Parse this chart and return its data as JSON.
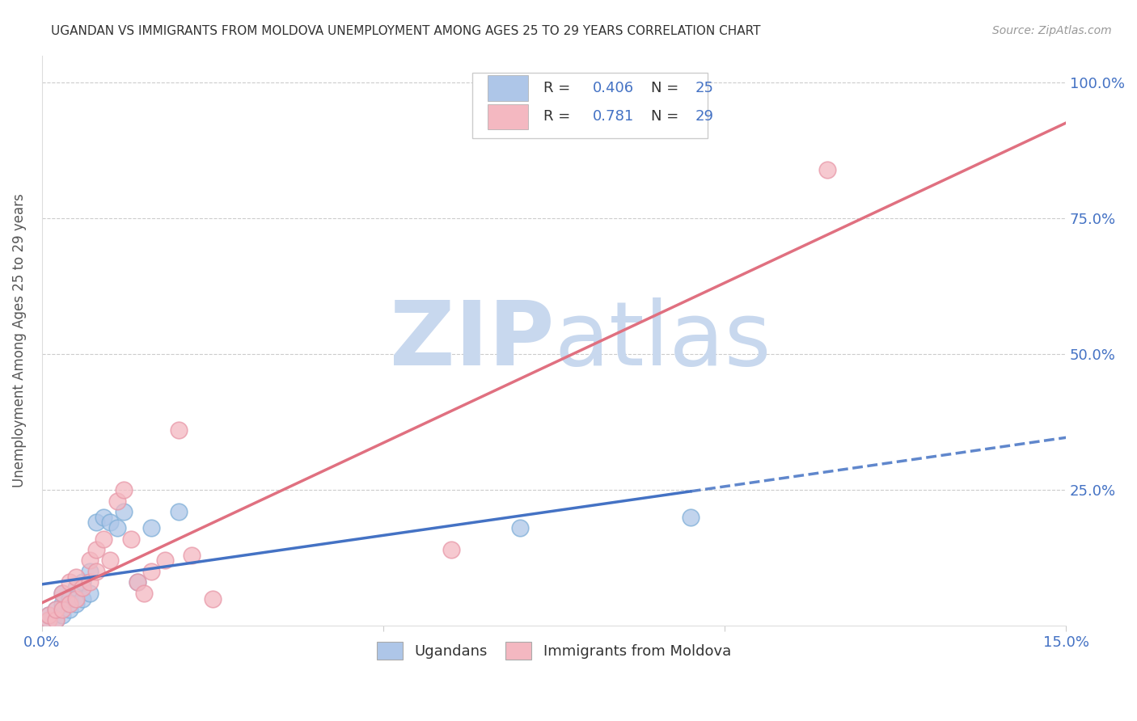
{
  "title": "UGANDAN VS IMMIGRANTS FROM MOLDOVA UNEMPLOYMENT AMONG AGES 25 TO 29 YEARS CORRELATION CHART",
  "source": "Source: ZipAtlas.com",
  "xlabel_color": "#4472c4",
  "ylabel": "Unemployment Among Ages 25 to 29 years",
  "x_min": 0.0,
  "x_max": 0.15,
  "y_min": 0.0,
  "y_max": 1.05,
  "x_ticks": [
    0.0,
    0.05,
    0.1,
    0.15
  ],
  "x_tick_labels": [
    "0.0%",
    "",
    "",
    "15.0%"
  ],
  "y_ticks": [
    0.0,
    0.25,
    0.5,
    0.75,
    1.0
  ],
  "y_tick_labels": [
    "",
    "25.0%",
    "50.0%",
    "75.0%",
    "100.0%"
  ],
  "background_color": "#ffffff",
  "grid_color": "#cccccc",
  "watermark_zip": "ZIP",
  "watermark_atlas": "atlas",
  "watermark_color_zip": "#c8d8ee",
  "watermark_color_atlas": "#c8d8ee",
  "legend_color1": "#aec6e8",
  "legend_color2": "#f4b8c1",
  "scatter_color1": "#aec6e8",
  "scatter_color2": "#f4b8c1",
  "line_color1": "#4472c4",
  "line_color2": "#e07080",
  "label1": "Ugandans",
  "label2": "Immigrants from Moldova",
  "ugandan_x": [
    0.001,
    0.001,
    0.002,
    0.002,
    0.003,
    0.003,
    0.003,
    0.004,
    0.004,
    0.005,
    0.005,
    0.006,
    0.006,
    0.007,
    0.007,
    0.008,
    0.009,
    0.01,
    0.011,
    0.012,
    0.014,
    0.016,
    0.02,
    0.07,
    0.095
  ],
  "ugandan_y": [
    0.01,
    0.02,
    0.01,
    0.03,
    0.02,
    0.04,
    0.06,
    0.03,
    0.05,
    0.04,
    0.07,
    0.05,
    0.08,
    0.06,
    0.1,
    0.19,
    0.2,
    0.19,
    0.18,
    0.21,
    0.08,
    0.18,
    0.21,
    0.18,
    0.2
  ],
  "moldova_x": [
    0.001,
    0.001,
    0.002,
    0.002,
    0.003,
    0.003,
    0.004,
    0.004,
    0.005,
    0.005,
    0.006,
    0.007,
    0.007,
    0.008,
    0.008,
    0.009,
    0.01,
    0.011,
    0.012,
    0.013,
    0.014,
    0.015,
    0.016,
    0.018,
    0.02,
    0.022,
    0.025,
    0.06,
    0.115
  ],
  "moldova_y": [
    0.01,
    0.02,
    0.01,
    0.03,
    0.03,
    0.06,
    0.04,
    0.08,
    0.05,
    0.09,
    0.07,
    0.08,
    0.12,
    0.1,
    0.14,
    0.16,
    0.12,
    0.23,
    0.25,
    0.16,
    0.08,
    0.06,
    0.1,
    0.12,
    0.36,
    0.13,
    0.05,
    0.14,
    0.84
  ],
  "ugandan_line_x": [
    0.0,
    0.095,
    0.15
  ],
  "ugandan_line_y_intercept": 0.055,
  "ugandan_line_slope": 1.55,
  "moldova_line_x": [
    0.0,
    0.15
  ],
  "moldova_line_y_intercept": -0.02,
  "moldova_line_slope": 4.6
}
